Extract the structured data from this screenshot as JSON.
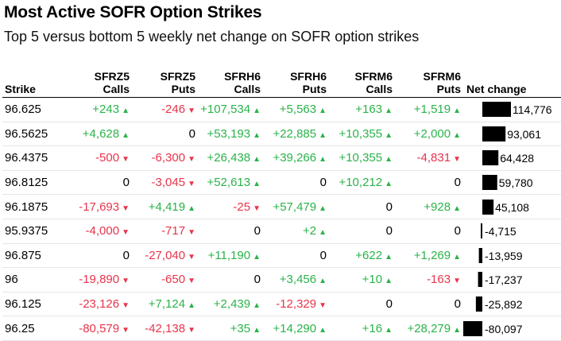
{
  "title": "Most Active SOFR Option Strikes",
  "subtitle": "Top 5 versus bottom 5 weekly net change on SOFR option strikes",
  "headers": {
    "strike": "Strike",
    "c1a": "SFRZ5",
    "c1b": "Calls",
    "c2a": "SFRZ5",
    "c2b": "Puts",
    "c3a": "SFRH6",
    "c3b": "Calls",
    "c4a": "SFRH6",
    "c4b": "Puts",
    "c5a": "SFRM6",
    "c5b": "Calls",
    "c6a": "SFRM6",
    "c6b": "Puts",
    "net": "Net change"
  },
  "colors": {
    "positive": "#2ab34a",
    "negative": "#e8344b",
    "bar": "#000000"
  },
  "chart_data": {
    "type": "table",
    "title": "Most Active SOFR Option Strikes",
    "subtitle": "Top 5 versus bottom 5 weekly net change on SOFR option strikes",
    "columns": [
      "Strike",
      "SFRZ5 Calls",
      "SFRZ5 Puts",
      "SFRH6 Calls",
      "SFRH6 Puts",
      "SFRM6 Calls",
      "SFRM6 Puts",
      "Net change"
    ],
    "rows": [
      {
        "strike": "96.625",
        "values": [
          "+243",
          "-246",
          "+107,534",
          "+5,563",
          "+163",
          "+1,519"
        ],
        "net": "114,776",
        "net_value": 114776
      },
      {
        "strike": "96.5625",
        "values": [
          "+4,628",
          "0",
          "+53,193",
          "+22,885",
          "+10,355",
          "+2,000"
        ],
        "net": "93,061",
        "net_value": 93061
      },
      {
        "strike": "96.4375",
        "values": [
          "-500",
          "-6,300",
          "+26,438",
          "+39,266",
          "+10,355",
          "-4,831"
        ],
        "net": "64,428",
        "net_value": 64428
      },
      {
        "strike": "96.8125",
        "values": [
          "0",
          "-3,045",
          "+52,613",
          "0",
          "+10,212",
          "0"
        ],
        "net": "59,780",
        "net_value": 59780
      },
      {
        "strike": "96.1875",
        "values": [
          "-17,693",
          "+4,419",
          "-25",
          "+57,479",
          "0",
          "+928"
        ],
        "net": "45,108",
        "net_value": 45108
      },
      {
        "strike": "95.9375",
        "values": [
          "-4,000",
          "-717",
          "0",
          "+2",
          "0",
          "0"
        ],
        "net": "-4,715",
        "net_value": -4715
      },
      {
        "strike": "96.875",
        "values": [
          "0",
          "-27,040",
          "+11,190",
          "0",
          "+622",
          "+1,269"
        ],
        "net": "-13,959",
        "net_value": -13959
      },
      {
        "strike": "96",
        "values": [
          "-19,890",
          "-650",
          "0",
          "+3,456",
          "+10",
          "-163"
        ],
        "net": "-17,237",
        "net_value": -17237
      },
      {
        "strike": "96.125",
        "values": [
          "-23,126",
          "+7,124",
          "+2,439",
          "-12,329",
          "0",
          "0"
        ],
        "net": "-25,892",
        "net_value": -25892
      },
      {
        "strike": "96.25",
        "values": [
          "-80,579",
          "-42,138",
          "+35",
          "+14,290",
          "+16",
          "+28,279"
        ],
        "net": "-80,097",
        "net_value": -80097
      }
    ]
  }
}
